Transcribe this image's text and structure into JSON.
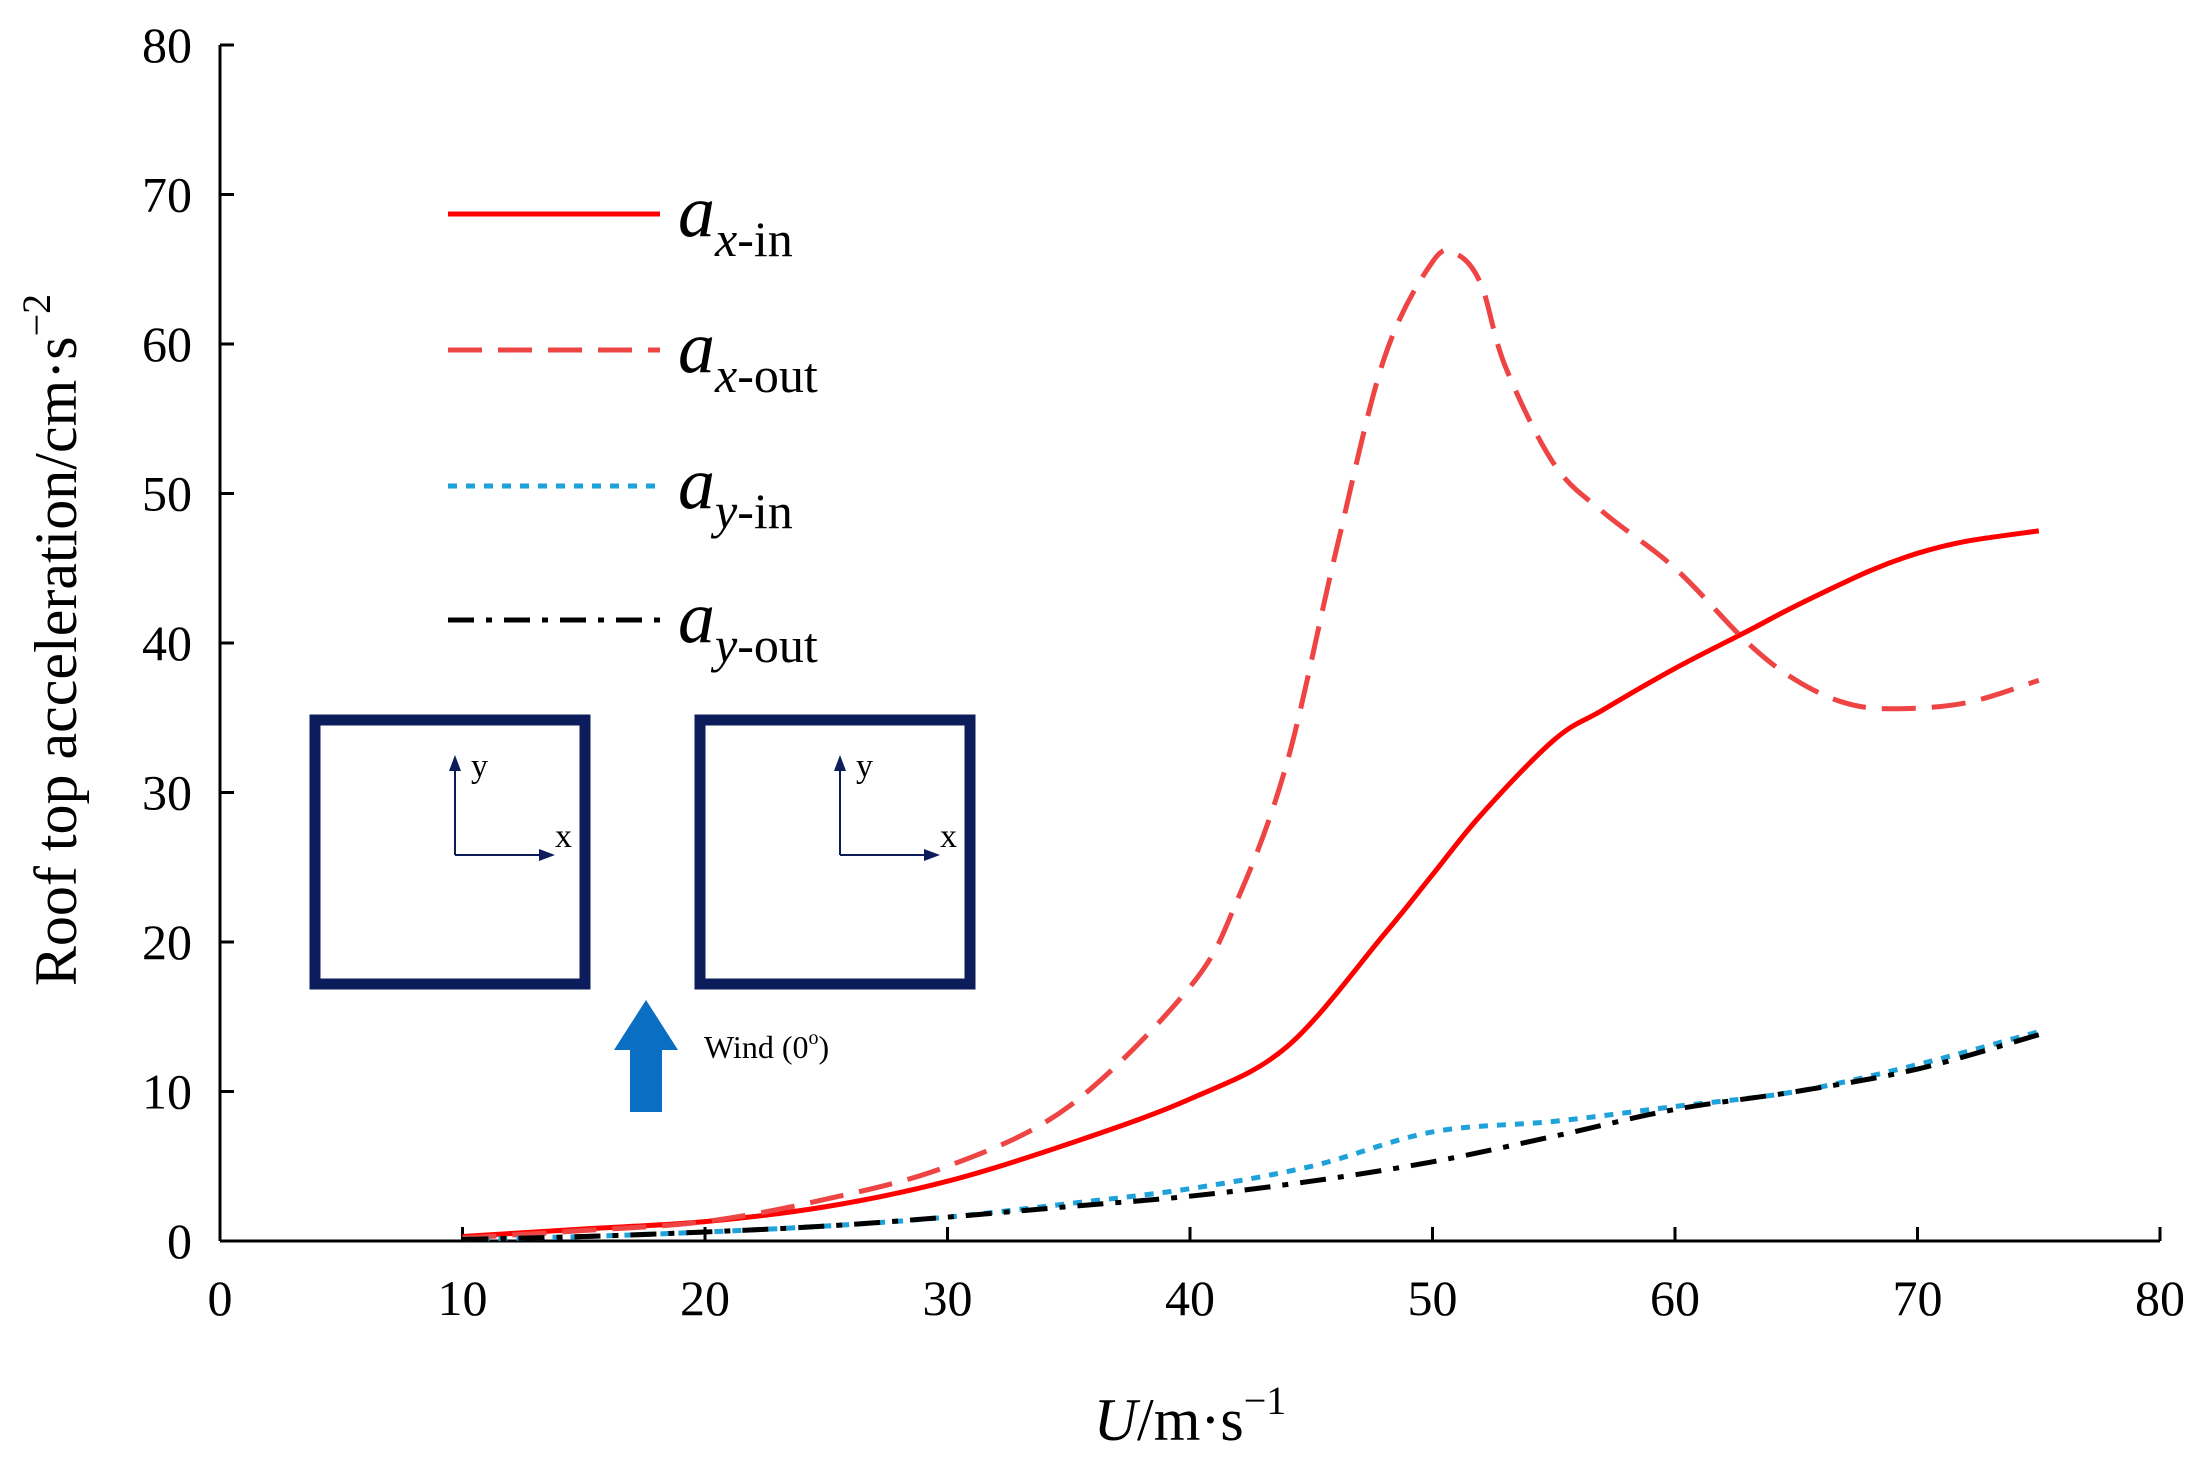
{
  "chart_data": {
    "type": "line",
    "title": "",
    "xlabel": {
      "var": "U",
      "unit": "/m·s",
      "exp": "−1"
    },
    "ylabel": {
      "text": "Roof top acceleration/cm·s",
      "exp": "−2"
    },
    "xlim": [
      0,
      80
    ],
    "ylim": [
      0,
      80
    ],
    "xticks": [
      "0",
      "10",
      "20",
      "30",
      "40",
      "50",
      "60",
      "70",
      "80"
    ],
    "yticks": [
      "0",
      "10",
      "20",
      "30",
      "40",
      "50",
      "60",
      "70",
      "80"
    ],
    "grid": false,
    "legend_position": "top-left",
    "series": [
      {
        "name": "a_x-in",
        "label_main": "a",
        "label_var": "x",
        "label_suffix": "-in",
        "color": "#ff0000",
        "style": "solid",
        "x": [
          10,
          15,
          20,
          25,
          30,
          35,
          40,
          44,
          48,
          50,
          52,
          55,
          57,
          60,
          63,
          65,
          68,
          70,
          72,
          75
        ],
        "y": [
          0.3,
          0.8,
          1.3,
          2.3,
          4.0,
          6.5,
          9.5,
          13.0,
          20.5,
          24.5,
          28.5,
          33.5,
          35.5,
          38.3,
          40.8,
          42.5,
          44.8,
          46.0,
          46.8,
          47.5
        ]
      },
      {
        "name": "a_x-out",
        "label_main": "a",
        "label_var": "x",
        "label_suffix": "-out",
        "color": "#ee4444",
        "style": "dashed",
        "x": [
          10,
          15,
          20,
          25,
          30,
          35,
          40,
          42,
          44,
          46,
          48,
          50,
          51,
          52,
          53,
          55,
          57,
          60,
          63,
          65,
          67,
          69,
          72,
          75
        ],
        "y": [
          0.2,
          0.7,
          1.3,
          2.8,
          5.0,
          9.0,
          17.0,
          23.0,
          32.0,
          46.0,
          59.0,
          65.5,
          66.0,
          64.0,
          58.5,
          52.0,
          48.8,
          45.0,
          40.0,
          37.5,
          36.0,
          35.6,
          36.0,
          37.5
        ]
      },
      {
        "name": "a_y-in",
        "label_main": "a",
        "label_var": "y",
        "label_suffix": "-in",
        "color": "#1ea2d9",
        "style": "dotted",
        "x": [
          10,
          15,
          20,
          25,
          30,
          35,
          40,
          45,
          50,
          55,
          60,
          65,
          70,
          75
        ],
        "y": [
          0.1,
          0.3,
          0.6,
          1.0,
          1.6,
          2.5,
          3.5,
          5.0,
          7.3,
          8.0,
          9.0,
          10.0,
          11.8,
          14.0
        ]
      },
      {
        "name": "a_y-out",
        "label_main": "a",
        "label_var": "y",
        "label_suffix": "-out",
        "color": "#000000",
        "style": "dashdot",
        "x": [
          10,
          15,
          20,
          25,
          30,
          35,
          40,
          45,
          50,
          55,
          60,
          65,
          70,
          75
        ],
        "y": [
          0.1,
          0.3,
          0.6,
          1.0,
          1.6,
          2.3,
          3.0,
          4.0,
          5.3,
          7.0,
          8.8,
          10.0,
          11.5,
          13.8
        ]
      }
    ],
    "inset": {
      "axis_x_label": "x",
      "axis_y_label": "y",
      "wind_label": "Wind (0",
      "wind_degree": "o",
      "wind_label_end": ")",
      "box_color": "#0d1d5c",
      "arrow_color": "#0a6fc2"
    }
  }
}
